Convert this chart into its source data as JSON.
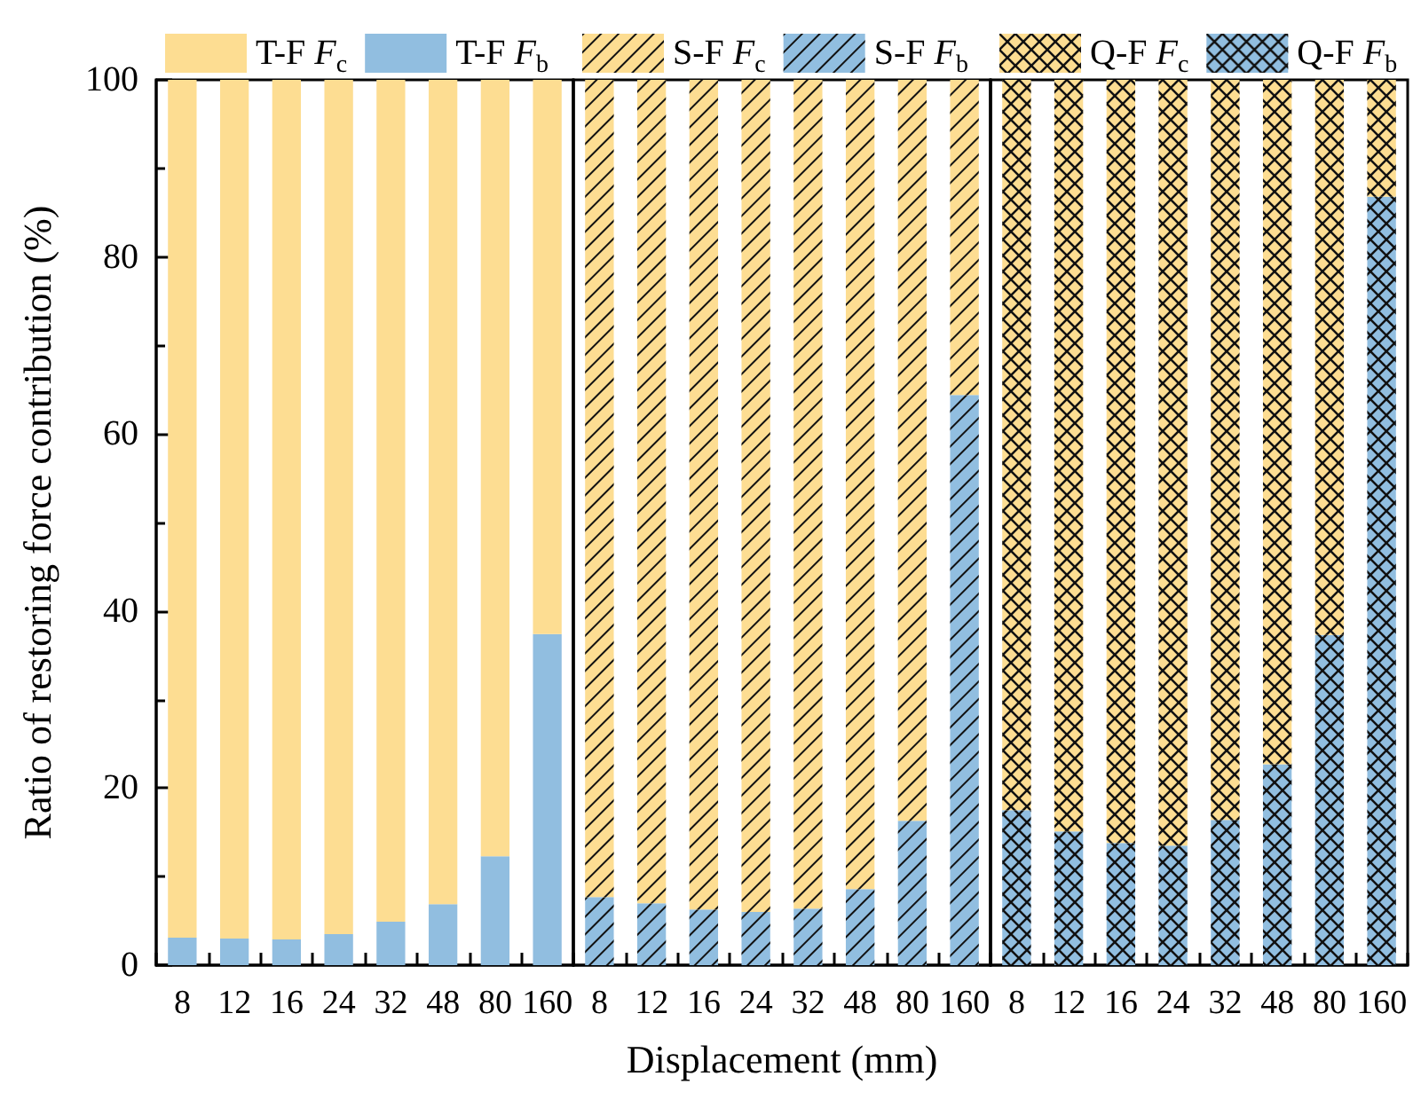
{
  "chart_data": [
    {
      "type": "bar",
      "stacked": true,
      "legend": "top",
      "grid": false,
      "ylabel": "Ratio of restoring force contribution (%)",
      "ylim": [
        0,
        100
      ],
      "yticks": [
        0,
        {
          "value": 10,
          "label": null
        },
        20,
        {
          "value": 30,
          "label": null
        },
        40,
        {
          "value": 50,
          "label": null
        },
        60,
        {
          "value": 70,
          "label": null
        },
        80,
        {
          "value": 90,
          "label": null
        },
        100
      ],
      "categories": [
        "8",
        "12",
        "16",
        "24",
        "32",
        "48",
        "80",
        "160"
      ],
      "series": [
        {
          "name": "T-F F$_{b}$",
          "color": "#91bee0",
          "values": [
            3.1,
            3.0,
            2.9,
            3.5,
            4.9,
            6.9,
            12.3,
            37.4
          ]
        },
        {
          "name": "T-F F$_{c}$",
          "color": "#fddd92",
          "values": [
            96.9,
            97.0,
            97.1,
            96.5,
            95.1,
            93.1,
            87.7,
            62.6
          ]
        }
      ]
    },
    {
      "type": "bar",
      "stacked": true,
      "legend": "top",
      "grid": false,
      "tick_labels": "x",
      "xlabel": "Displacement (mm)",
      "ylim": [
        0,
        100
      ],
      "categories": [
        "8",
        "12",
        "16",
        "24",
        "32",
        "48",
        "80",
        "160"
      ],
      "series": [
        {
          "name": "S-F F$_{b}$",
          "color": "#91bee0",
          "values": [
            7.7,
            7.0,
            6.3,
            6.0,
            6.4,
            8.6,
            16.3,
            64.4
          ]
        },
        {
          "name": "S-F F$_{c}$",
          "color": "#fddd92",
          "values": [
            92.3,
            93.0,
            93.7,
            94.0,
            93.6,
            91.4,
            83.7,
            35.6
          ]
        }
      ]
    },
    {
      "type": "bar",
      "stacked": true,
      "legend": "top",
      "grid": false,
      "tick_labels": "x",
      "ylim": [
        0,
        100
      ],
      "categories": [
        "8",
        "12",
        "16",
        "24",
        "32",
        "48",
        "80",
        "160"
      ],
      "series": [
        {
          "name": "Q-F F$_{b}$",
          "color": "#91bee0",
          "values": [
            17.5,
            15.1,
            13.8,
            13.5,
            16.4,
            22.7,
            37.3,
            86.8
          ]
        },
        {
          "name": "Q-F F$_{c}$",
          "color": "#fddd92",
          "values": [
            82.5,
            84.9,
            86.2,
            86.5,
            83.6,
            77.3,
            62.7,
            13.2
          ]
        }
      ]
    }
  ]
}
